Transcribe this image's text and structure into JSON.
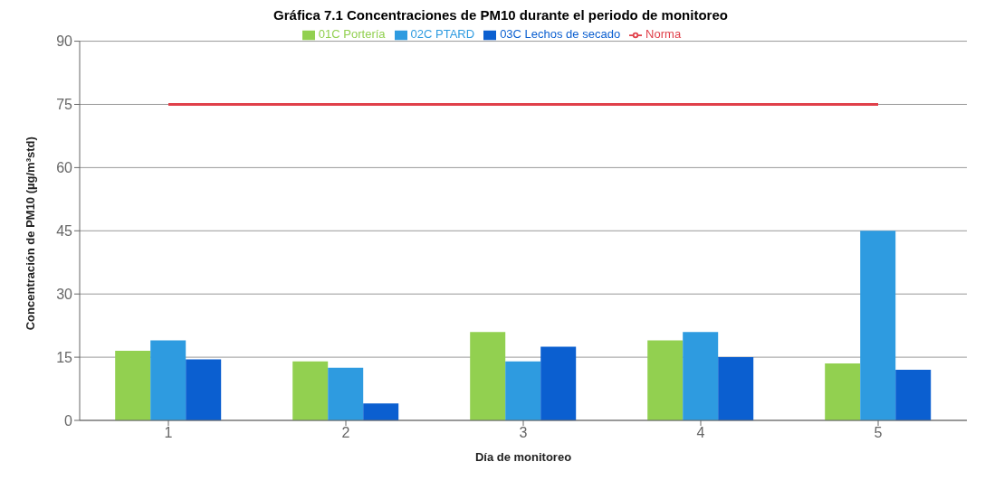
{
  "chart_data": {
    "type": "bar",
    "title": "Gráfica 7.1 Concentraciones de PM10 durante el periodo de monitoreo",
    "xlabel": "Día de monitoreo",
    "ylabel": "Concentración de PM10 (µg/m³std)",
    "categories": [
      "1",
      "2",
      "3",
      "4",
      "5"
    ],
    "series": [
      {
        "name": "01C Portería",
        "color": "#92d050",
        "values": [
          16.5,
          14,
          21,
          19,
          13.5
        ]
      },
      {
        "name": "02C PTARD",
        "color": "#2e9be0",
        "values": [
          19,
          12.5,
          14,
          21,
          45
        ]
      },
      {
        "name": "03C Lechos de secado",
        "color": "#0b5fd0",
        "values": [
          14.5,
          4,
          17.5,
          15,
          12
        ]
      },
      {
        "name": "Norma",
        "type": "line",
        "color": "#e0404a",
        "values": [
          75,
          75,
          75,
          75,
          75
        ],
        "marker": "none"
      }
    ],
    "ylim": [
      0,
      90
    ],
    "yticks": [
      0,
      15,
      30,
      45,
      60,
      75,
      90
    ],
    "grid": "y",
    "legend": "top"
  }
}
